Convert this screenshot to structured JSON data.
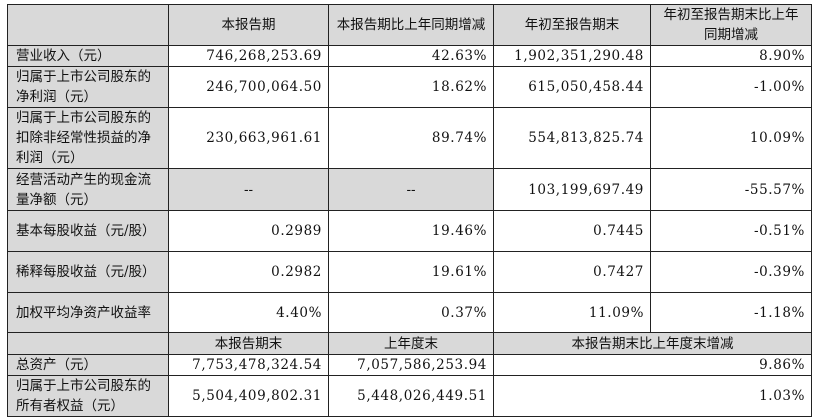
{
  "header": [
    "",
    "本报告期",
    "本报告期比上年同期增减",
    "年初至报告期末",
    "年初至报告期末比上年同期增减"
  ],
  "rows": [
    {
      "label": "营业收入（元）",
      "values": [
        "746,268,253.69",
        "42.63%",
        "1,902,351,290.48",
        "8.90%"
      ]
    },
    {
      "label": "归属于上市公司股东的净利润（元）",
      "values": [
        "246,700,064.50",
        "18.62%",
        "615,050,458.44",
        "-1.00%"
      ]
    },
    {
      "label": "归属于上市公司股东的扣除非经常性损益的净利润（元）",
      "values": [
        "230,663,961.61",
        "89.74%",
        "554,813,825.74",
        "10.09%"
      ]
    },
    {
      "label": "经营活动产生的现金流量净额（元）",
      "values": [
        "--",
        "--",
        "103,199,697.49",
        "-55.57%"
      ]
    },
    {
      "label": "基本每股收益（元/股）",
      "values": [
        "0.2989",
        "19.46%",
        "0.7445",
        "-0.51%"
      ]
    },
    {
      "label": "稀释每股收益（元/股）",
      "values": [
        "0.2982",
        "19.61%",
        "0.7427",
        "-0.39%"
      ]
    },
    {
      "label": "加权平均净资产收益率",
      "values": [
        "4.40%",
        "0.37%",
        "11.09%",
        "-1.18%"
      ]
    }
  ],
  "header2": [
    "",
    "本报告期末",
    "上年度末",
    "本报告期末比上年度末增减"
  ],
  "rows2": [
    {
      "label": "总资产（元）",
      "values": [
        "7,753,478,324.54",
        "7,057,586,253.94",
        "9.86%"
      ]
    },
    {
      "label": "归属于上市公司股东的所有者权益（元）",
      "values": [
        "5,504,409,802.31",
        "5,448,026,449.51",
        "1.03%"
      ]
    }
  ]
}
